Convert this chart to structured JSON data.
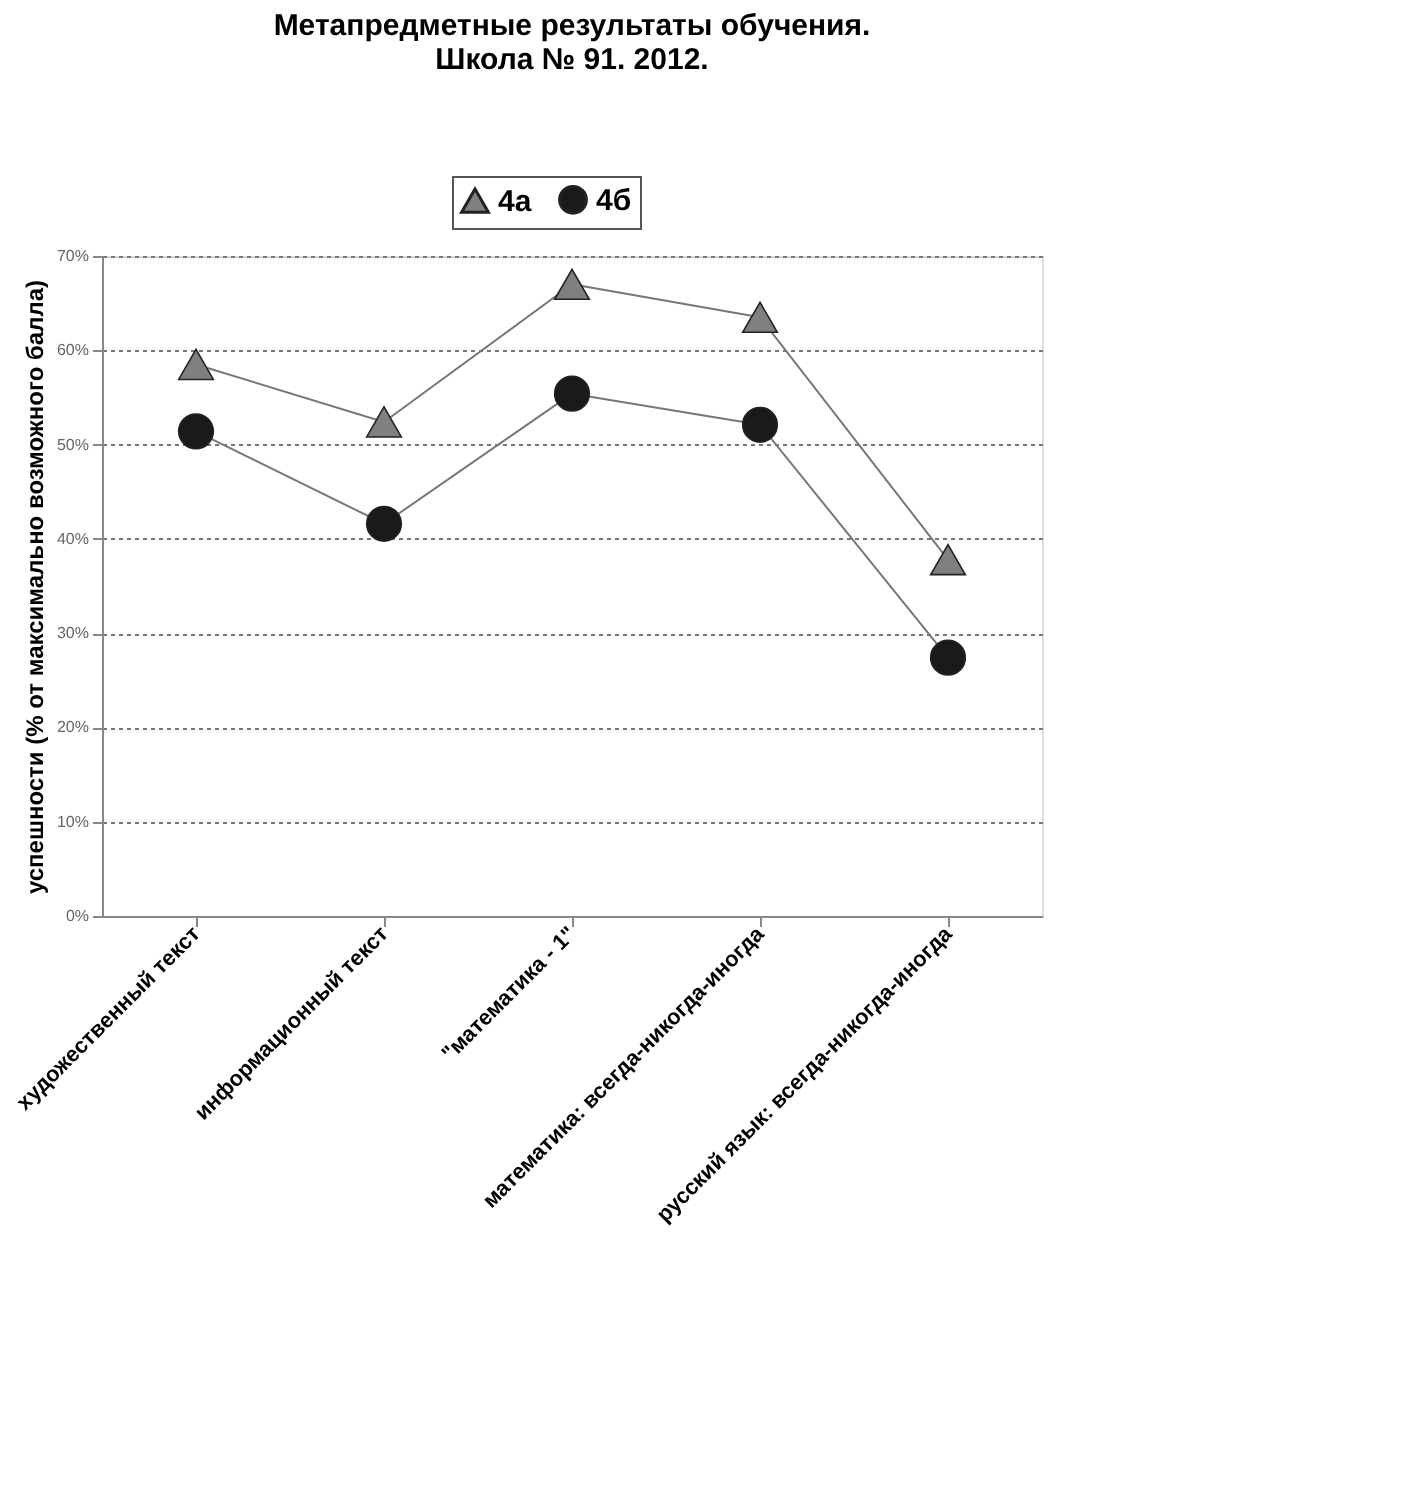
{
  "chart_data": {
    "type": "line",
    "title": [
      "Метапредметные результаты обучения.",
      "Школа № 91. 2012."
    ],
    "ylabel": "успешности (% от максимально  возможного балла)",
    "categories": [
      "художественный текст",
      "информационный текст",
      "\"математика - 1\"",
      "математика: всегда-никогда-иногда",
      "русский язык: всегда-никогда-иногда"
    ],
    "series": [
      {
        "name": "4а",
        "color": "#808080",
        "marker": "triangle",
        "values": [
          58.5,
          52.4,
          67,
          63.5,
          37.8
        ]
      },
      {
        "name": "4б",
        "color": "#1a1a1a",
        "marker": "circle",
        "values": [
          51.4,
          41.6,
          55.4,
          52.1,
          27.4
        ]
      }
    ],
    "ylim": [
      0,
      70
    ],
    "yticks": [
      {
        "value": 0,
        "label": "0%"
      },
      {
        "value": 10,
        "label": "10%"
      },
      {
        "value": 20,
        "label": "20%"
      },
      {
        "value": 30,
        "label": "30%"
      },
      {
        "value": 40,
        "label": "40%"
      },
      {
        "value": 50,
        "label": "50%"
      },
      {
        "value": 60,
        "label": "60%"
      },
      {
        "value": 70,
        "label": "70%"
      }
    ],
    "grid": "y",
    "legend": "top",
    "line_style": "solid"
  }
}
